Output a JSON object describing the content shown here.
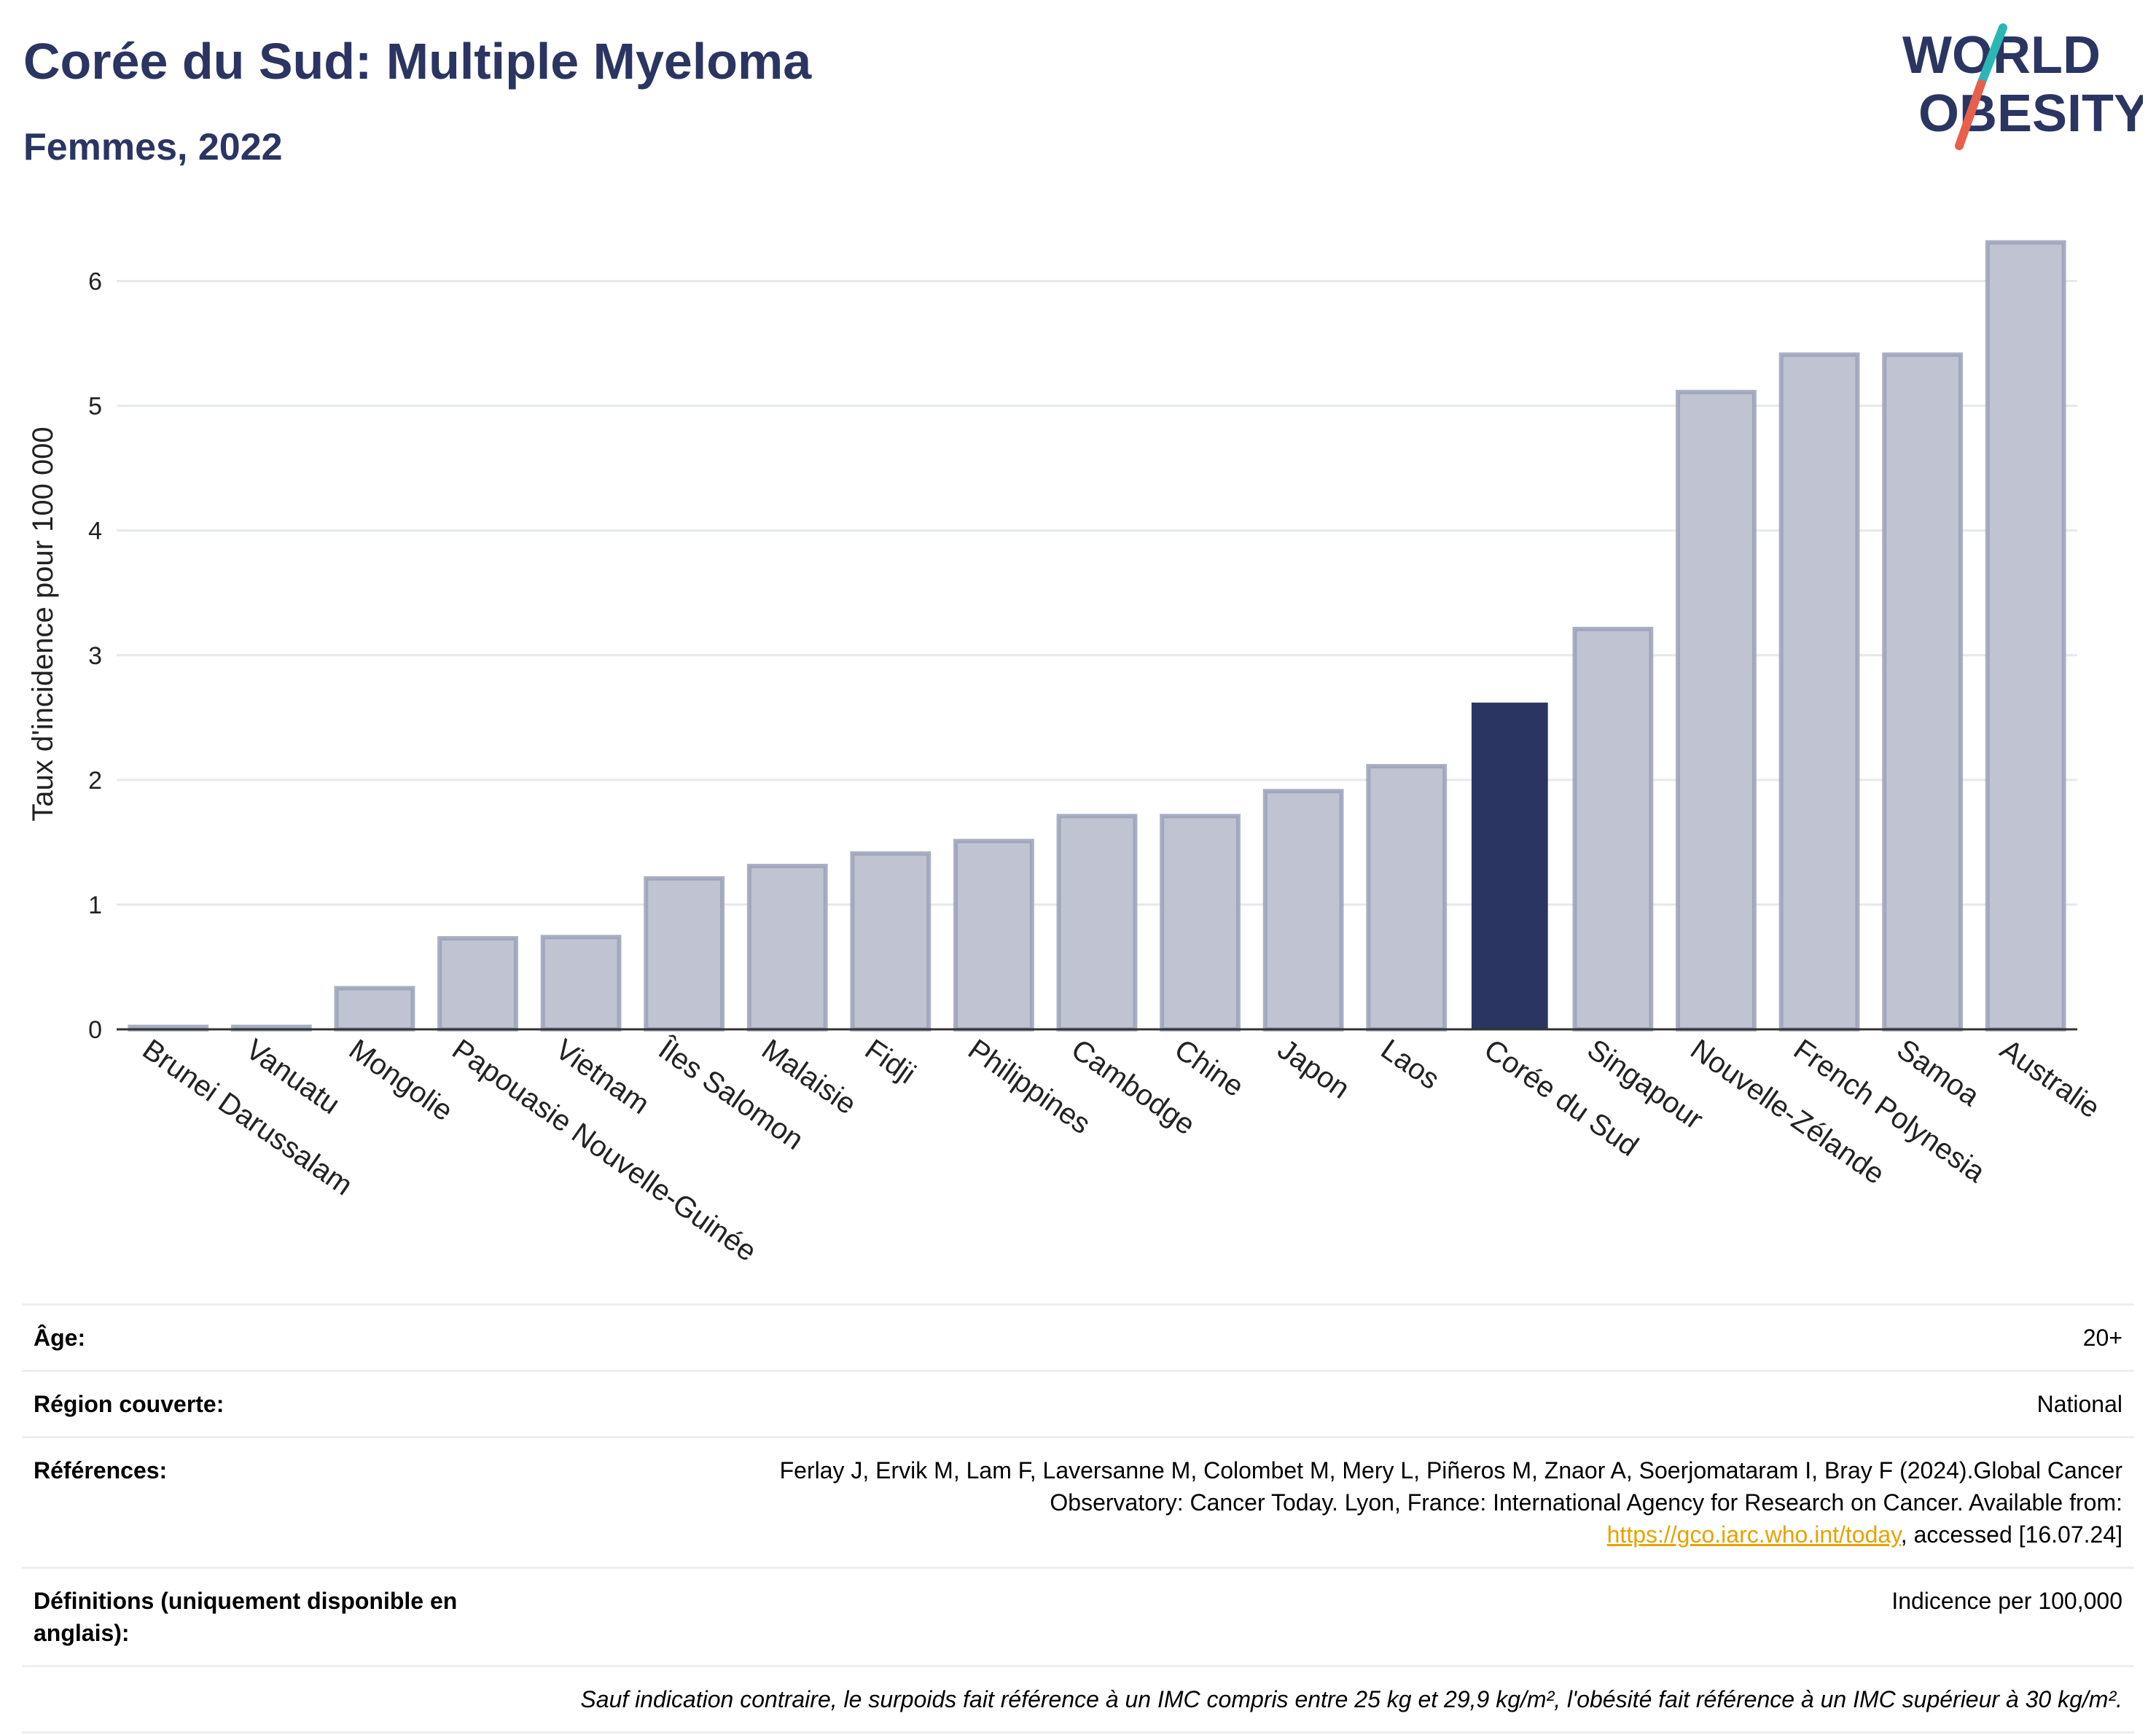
{
  "header": {
    "title": "Corée du Sud: Multiple Myeloma",
    "subtitle": "Femmes, 2022"
  },
  "logo": {
    "line1": "WORLD",
    "line2": "OBESITY"
  },
  "colors": {
    "highlight": "#2a3561",
    "bar": "#c0c4d2",
    "bar_stroke": "#9aa1b9",
    "title": "#2a3561",
    "grid": "#e6e8ee"
  },
  "chart_data": {
    "type": "bar",
    "ylabel": "Taux d'incidence pour 100 000",
    "xlabel": "",
    "ylim": [
      0,
      6.5
    ],
    "yticks": [
      0,
      1,
      2,
      3,
      4,
      5,
      6
    ],
    "grid": true,
    "highlight": "Corée du Sud",
    "categories": [
      "Brunei Darussalam",
      "Vanuatu",
      "Mongolie",
      "Papouasie Nouvelle-Guinée",
      "Vietnam",
      "Îles Salomon",
      "Malaisie",
      "Fidji",
      "Philippines",
      "Cambodge",
      "Chine",
      "Japon",
      "Laos",
      "Corée du Sud",
      "Singapour",
      "Nouvelle-Zélande",
      "French Polynesia",
      "Samoa",
      "Australie"
    ],
    "values": [
      0.02,
      0.02,
      0.33,
      0.73,
      0.74,
      1.21,
      1.31,
      1.41,
      1.51,
      1.71,
      1.71,
      1.91,
      2.11,
      2.62,
      3.21,
      5.11,
      5.41,
      5.41,
      6.31
    ]
  },
  "meta": {
    "age_label": "Âge:",
    "age_value": "20+",
    "region_label": "Région couverte:",
    "region_value": "National",
    "refs_label": "Références:",
    "refs_text": "Ferlay J, Ervik M, Lam F, Laversanne M, Colombet M, Mery L, Piñeros M, Znaor A, Soerjomataram I, Bray F (2024).Global Cancer Observatory: Cancer Today. Lyon, France: International Agency for Research on Cancer. Available from: ",
    "refs_link": "https://gco.iarc.who.int/today",
    "refs_tail": ", accessed [16.07.24]",
    "defs_label": "Définitions (uniquement disponible en anglais):",
    "defs_value": "Indicence per 100,000",
    "note": "Sauf indication contraire, le surpoids fait référence à un IMC compris entre 25 kg et 29,9 kg/m², l'obésité fait référence à un IMC supérieur à 30 kg/m²."
  }
}
